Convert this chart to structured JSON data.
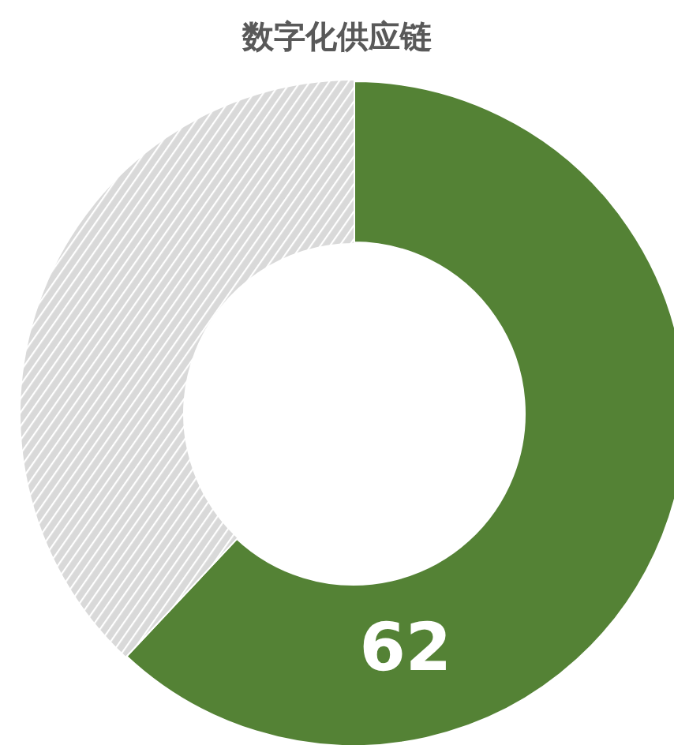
{
  "chart_data": {
    "type": "donut",
    "title": "数字化供应链",
    "categories": [
      null,
      null
    ],
    "values": [
      62,
      38
    ],
    "colors": [
      "#548235",
      "#d9d9d9"
    ],
    "value_labels": [
      "62",
      null
    ]
  }
}
